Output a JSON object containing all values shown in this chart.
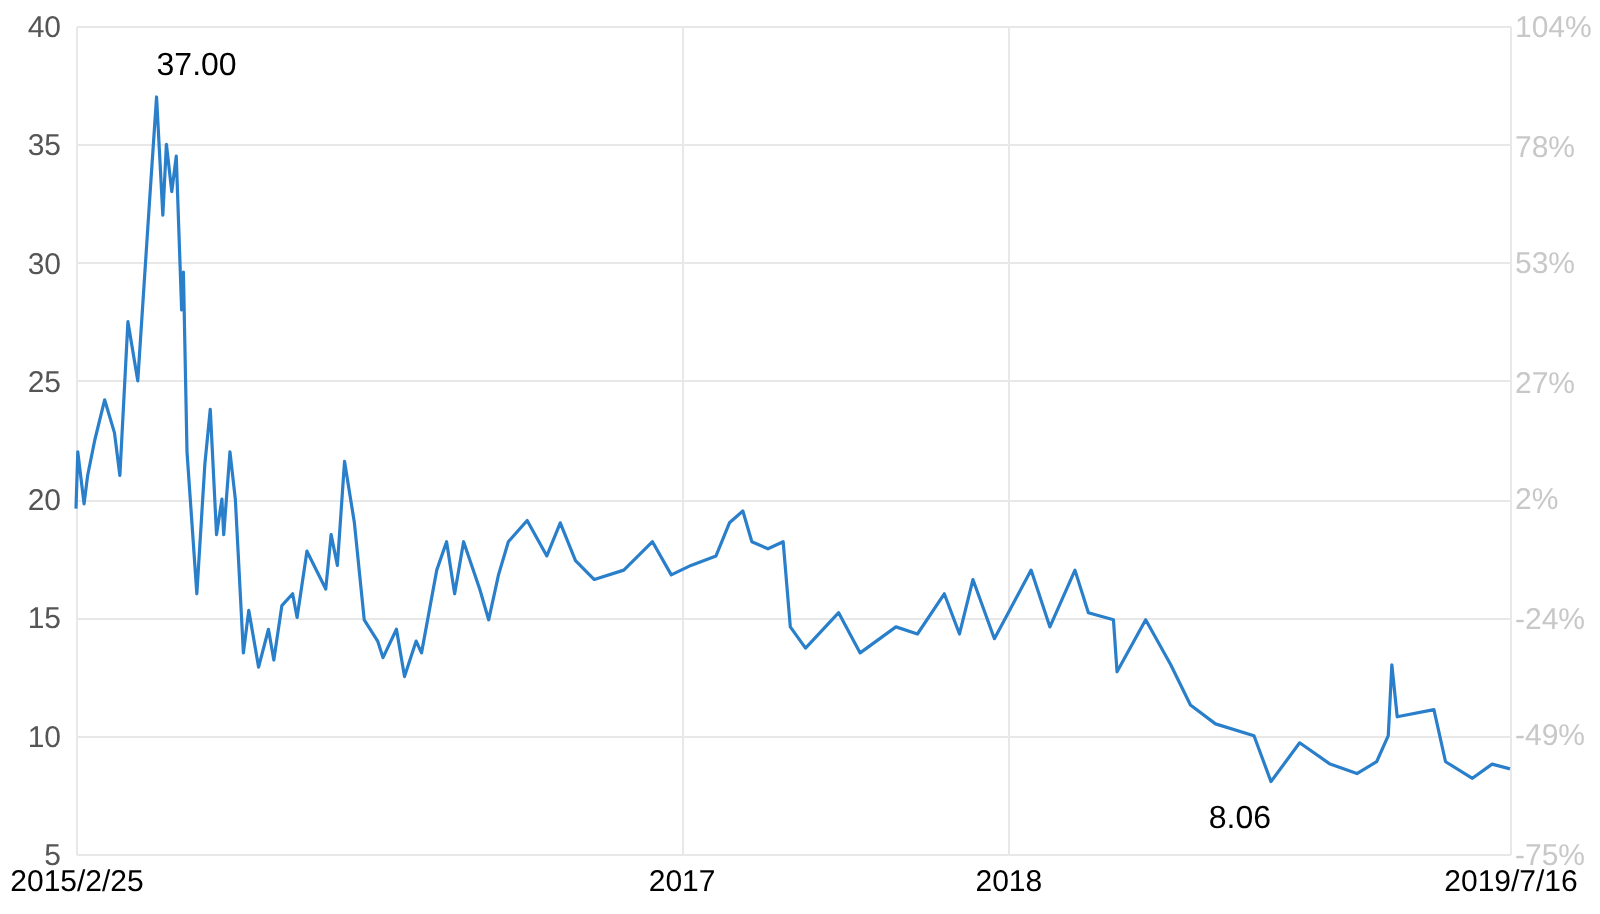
{
  "chart_data": {
    "type": "line",
    "x": [
      "2015-02-25",
      "2015-02-27",
      "2015-03-06",
      "2015-03-10",
      "2015-03-18",
      "2015-03-29",
      "2015-04-09",
      "2015-04-15",
      "2015-04-24",
      "2015-05-05",
      "2015-05-18",
      "2015-05-26",
      "2015-06-02",
      "2015-06-06",
      "2015-06-12",
      "2015-06-17",
      "2015-06-23",
      "2015-06-25",
      "2015-06-29",
      "2015-07-10",
      "2015-07-19",
      "2015-07-25",
      "2015-08-01",
      "2015-08-07",
      "2015-08-09",
      "2015-08-16",
      "2015-08-22",
      "2015-08-31",
      "2015-09-06",
      "2015-09-17",
      "2015-09-28",
      "2015-10-04",
      "2015-10-13",
      "2015-10-25",
      "2015-10-30",
      "2015-11-10",
      "2015-12-01",
      "2015-12-07",
      "2015-12-14",
      "2015-12-22",
      "2016-01-02",
      "2016-01-13",
      "2016-01-28",
      "2016-02-03",
      "2016-02-18",
      "2016-02-27",
      "2016-03-11",
      "2016-03-17",
      "2016-04-03",
      "2016-04-14",
      "2016-04-23",
      "2016-05-03",
      "2016-05-21",
      "2016-05-31",
      "2016-06-11",
      "2016-06-22",
      "2016-07-13",
      "2016-08-04",
      "2016-08-19",
      "2016-09-05",
      "2016-09-26",
      "2016-10-29",
      "2016-11-30",
      "2016-12-21",
      "2017-01-12",
      "2017-02-09",
      "2017-02-24",
      "2017-03-11",
      "2017-03-21",
      "2017-04-08",
      "2017-04-25",
      "2017-05-03",
      "2017-05-20",
      "2017-06-26",
      "2017-07-20",
      "2017-08-29",
      "2017-09-22",
      "2017-10-22",
      "2017-11-08",
      "2017-11-23",
      "2017-12-17",
      "2018-01-27",
      "2018-02-17",
      "2018-03-17",
      "2018-04-01",
      "2018-04-29",
      "2018-05-03",
      "2018-06-04",
      "2018-07-02",
      "2018-07-24",
      "2018-08-21",
      "2018-10-03",
      "2018-10-22",
      "2018-11-23",
      "2018-12-27",
      "2019-01-26",
      "2019-02-17",
      "2019-03-02",
      "2019-03-06",
      "2019-03-12",
      "2019-04-22",
      "2019-05-05",
      "2019-06-04",
      "2019-06-26",
      "2019-07-16"
    ],
    "series": [
      {
        "color": "#2a7fca",
        "values": [
          19.6,
          22.0,
          19.8,
          21.0,
          22.5,
          24.2,
          22.8,
          21.0,
          27.5,
          25.0,
          32.5,
          37.0,
          32.0,
          35.0,
          33.0,
          34.5,
          28.0,
          29.6,
          22.0,
          16.0,
          21.5,
          23.8,
          18.5,
          20.0,
          18.5,
          22.0,
          20.0,
          13.5,
          15.3,
          12.9,
          14.5,
          13.2,
          15.5,
          16.0,
          15.0,
          17.8,
          16.2,
          18.5,
          17.2,
          21.6,
          19.0,
          14.9,
          14.0,
          13.3,
          14.5,
          12.5,
          14.0,
          13.5,
          17.0,
          18.2,
          16.0,
          18.2,
          16.2,
          14.9,
          16.8,
          18.2,
          19.1,
          17.6,
          19.0,
          17.4,
          16.6,
          17.0,
          18.2,
          16.8,
          17.2,
          17.6,
          19.0,
          19.5,
          18.2,
          17.9,
          18.2,
          14.6,
          13.7,
          15.2,
          13.5,
          14.6,
          14.3,
          16.0,
          14.3,
          16.6,
          14.1,
          17.0,
          14.6,
          17.0,
          15.2,
          14.9,
          12.7,
          14.9,
          13.0,
          11.3,
          10.5,
          10.0,
          8.06,
          9.7,
          8.8,
          8.4,
          8.9,
          10.0,
          13.0,
          10.8,
          11.1,
          8.9,
          8.2,
          8.8,
          8.6
        ]
      }
    ],
    "xlim": [
      "2015-02-25",
      "2019-07-16"
    ],
    "xticks": [
      {
        "value": "2015-02-25",
        "label": "2015/2/25"
      },
      {
        "value": "2017-01-01",
        "label": "2017"
      },
      {
        "value": "2018-01-01",
        "label": "2018"
      },
      {
        "value": "2019-07-16",
        "label": "2019/7/16"
      }
    ],
    "ylim": [
      5,
      40
    ],
    "yticks": [
      5,
      10,
      15,
      20,
      25,
      30,
      35,
      40
    ],
    "y2lim": [
      -75,
      104
    ],
    "y2ticks": [
      {
        "value": -75,
        "label": "-75%"
      },
      {
        "value": -49,
        "label": "-49%"
      },
      {
        "value": -24,
        "label": "-24%"
      },
      {
        "value": 2,
        "label": "2%"
      },
      {
        "value": 27,
        "label": "27%"
      },
      {
        "value": 53,
        "label": "53%"
      },
      {
        "value": 78,
        "label": "78%"
      },
      {
        "value": 104,
        "label": "104%"
      }
    ],
    "annotations": [
      {
        "text": "37.00",
        "x": "2015-05-26",
        "y": 37
      },
      {
        "text": "8.06",
        "x": "2018-10-22",
        "y": 8.06
      }
    ],
    "grid": true,
    "line_style": "solid",
    "marker": "none"
  }
}
